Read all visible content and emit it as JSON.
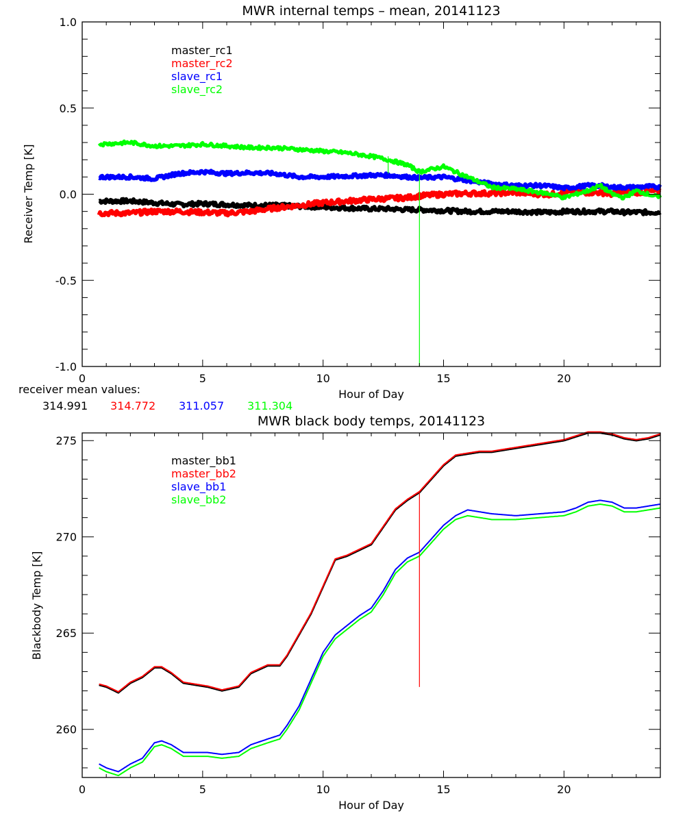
{
  "chart_data": [
    {
      "type": "line",
      "title": "MWR internal temps – mean, 20141123",
      "xlabel": "Hour of Day",
      "ylabel": "Receiver Temp [K]",
      "xlim": [
        0,
        24
      ],
      "ylim": [
        -1.0,
        1.0
      ],
      "xticks": [
        "0",
        "5",
        "10",
        "15",
        "20"
      ],
      "yticks": [
        "-1.0",
        "-0.5",
        "0.0",
        "0.5",
        "1.0"
      ],
      "grid": false,
      "legend_position": "top-left",
      "x": [
        0.7,
        2,
        3,
        4,
        5,
        6,
        7,
        8,
        9,
        10,
        11,
        12,
        12.7,
        13.5,
        14,
        15,
        16,
        17,
        18,
        19,
        19.5,
        20,
        21,
        21.5,
        22,
        22.5,
        23,
        23.5,
        24
      ],
      "series": [
        {
          "name": "master_rc1",
          "color": "#000000",
          "values": [
            -0.04,
            -0.04,
            -0.05,
            -0.06,
            -0.055,
            -0.06,
            -0.065,
            -0.065,
            -0.07,
            -0.075,
            -0.08,
            -0.085,
            -0.085,
            -0.09,
            -0.09,
            -0.095,
            -0.1,
            -0.1,
            -0.1,
            -0.105,
            -0.105,
            -0.1,
            -0.1,
            -0.1,
            -0.1,
            -0.105,
            -0.105,
            -0.105,
            -0.105
          ]
        },
        {
          "name": "master_rc2",
          "color": "#ff0000",
          "values": [
            -0.11,
            -0.11,
            -0.1,
            -0.1,
            -0.105,
            -0.11,
            -0.1,
            -0.08,
            -0.065,
            -0.05,
            -0.04,
            -0.03,
            -0.025,
            -0.02,
            -0.01,
            0.0,
            0.005,
            0.005,
            0.01,
            0.0,
            0.0,
            0.01,
            0.01,
            0.01,
            0.0,
            0.01,
            0.01,
            0.015,
            0.02
          ]
        },
        {
          "name": "slave_rc1",
          "color": "#0000ff",
          "values": [
            0.1,
            0.1,
            0.09,
            0.12,
            0.13,
            0.12,
            0.125,
            0.12,
            0.1,
            0.1,
            0.105,
            0.11,
            0.11,
            0.1,
            0.095,
            0.1,
            0.08,
            0.06,
            0.05,
            0.05,
            0.045,
            0.035,
            0.05,
            0.05,
            0.04,
            0.04,
            0.04,
            0.045,
            0.04
          ]
        },
        {
          "name": "slave_rc2",
          "color": "#00ff00",
          "values": [
            0.29,
            0.3,
            0.28,
            0.28,
            0.29,
            0.28,
            0.27,
            0.27,
            0.26,
            0.25,
            0.24,
            0.22,
            0.2,
            0.17,
            0.13,
            0.16,
            0.1,
            0.04,
            0.03,
            0.01,
            0.0,
            -0.02,
            0.02,
            0.05,
            0.0,
            -0.02,
            0.02,
            0.0,
            -0.02
          ]
        }
      ],
      "spikes": [
        {
          "series": "slave_rc2",
          "x": 12.7,
          "y_from": 0.22,
          "y_to": 0.12
        },
        {
          "series": "slave_rc2",
          "x": 14.0,
          "y_from": 0.15,
          "y_to": -1.0
        }
      ],
      "annotation": {
        "label": "receiver mean values:",
        "values": [
          {
            "text": "314.991",
            "color": "#000000"
          },
          {
            "text": "314.772",
            "color": "#ff0000"
          },
          {
            "text": "311.057",
            "color": "#0000ff"
          },
          {
            "text": "311.304",
            "color": "#00ff00"
          }
        ]
      }
    },
    {
      "type": "line",
      "title": "MWR black body temps, 20141123",
      "xlabel": "Hour of Day",
      "ylabel": "Blackbody Temp [K]",
      "xlim": [
        0,
        24
      ],
      "ylim": [
        257.5,
        275.4
      ],
      "xticks": [
        "0",
        "5",
        "10",
        "15",
        "20"
      ],
      "yticks": [
        "260",
        "265",
        "270",
        "275"
      ],
      "grid": false,
      "legend_position": "top-left",
      "x": [
        0.7,
        1.0,
        1.5,
        2.0,
        2.5,
        3.0,
        3.3,
        3.7,
        4.2,
        4.7,
        5.2,
        5.8,
        6.5,
        7.0,
        7.7,
        8.2,
        8.5,
        9.0,
        9.5,
        10.0,
        10.5,
        11.0,
        11.5,
        12.0,
        12.5,
        13.0,
        13.5,
        14.0,
        14.5,
        15.0,
        15.5,
        16.0,
        16.5,
        17.0,
        18.0,
        19.0,
        20.0,
        20.5,
        21.0,
        21.5,
        22.0,
        22.5,
        23.0,
        23.5,
        24.0
      ],
      "series": [
        {
          "name": "master_bb1",
          "color": "#000000",
          "values": [
            262.3,
            262.2,
            261.9,
            262.4,
            262.7,
            263.2,
            263.2,
            262.9,
            262.4,
            262.3,
            262.2,
            262.0,
            262.2,
            262.9,
            263.3,
            263.3,
            263.8,
            264.9,
            266.0,
            267.4,
            268.8,
            269.0,
            269.3,
            269.6,
            270.5,
            271.4,
            271.9,
            272.3,
            273.0,
            273.7,
            274.2,
            274.3,
            274.4,
            274.4,
            274.6,
            274.8,
            275.0,
            275.2,
            275.4,
            275.4,
            275.3,
            275.1,
            275.0,
            275.1,
            275.3
          ]
        },
        {
          "name": "master_bb2",
          "color": "#ff0000",
          "values": [
            262.35,
            262.25,
            261.95,
            262.45,
            262.75,
            263.25,
            263.25,
            262.95,
            262.45,
            262.35,
            262.25,
            262.05,
            262.25,
            262.95,
            263.35,
            263.35,
            263.85,
            264.95,
            266.05,
            267.45,
            268.85,
            269.05,
            269.35,
            269.65,
            270.55,
            271.45,
            271.95,
            272.35,
            273.05,
            273.75,
            274.25,
            274.35,
            274.45,
            274.45,
            274.65,
            274.85,
            275.05,
            275.25,
            275.45,
            275.45,
            275.35,
            275.15,
            275.05,
            275.15,
            275.35
          ]
        },
        {
          "name": "slave_bb1",
          "color": "#0000ff",
          "values": [
            258.2,
            258.0,
            257.8,
            258.2,
            258.5,
            259.3,
            259.4,
            259.2,
            258.8,
            258.8,
            258.8,
            258.7,
            258.8,
            259.2,
            259.5,
            259.7,
            260.2,
            261.2,
            262.6,
            264.0,
            264.9,
            265.4,
            265.9,
            266.3,
            267.2,
            268.3,
            268.9,
            269.2,
            269.9,
            270.6,
            271.1,
            271.4,
            271.3,
            271.2,
            271.1,
            271.2,
            271.3,
            271.5,
            271.8,
            271.9,
            271.8,
            271.5,
            271.5,
            271.6,
            271.7
          ]
        },
        {
          "name": "slave_bb2",
          "color": "#00ff00",
          "values": [
            258.0,
            257.8,
            257.6,
            258.0,
            258.3,
            259.1,
            259.2,
            259.0,
            258.6,
            258.6,
            258.6,
            258.5,
            258.6,
            259.0,
            259.3,
            259.5,
            260.0,
            261.0,
            262.4,
            263.8,
            264.7,
            265.2,
            265.7,
            266.1,
            267.0,
            268.1,
            268.7,
            269.0,
            269.7,
            270.4,
            270.9,
            271.1,
            271.0,
            270.9,
            270.9,
            271.0,
            271.1,
            271.3,
            271.6,
            271.7,
            271.6,
            271.3,
            271.3,
            271.4,
            271.5
          ]
        }
      ],
      "spikes": [
        {
          "series": "master_bb2",
          "x": 14.0,
          "y_from": 272.3,
          "y_to": 262.2
        }
      ]
    }
  ]
}
